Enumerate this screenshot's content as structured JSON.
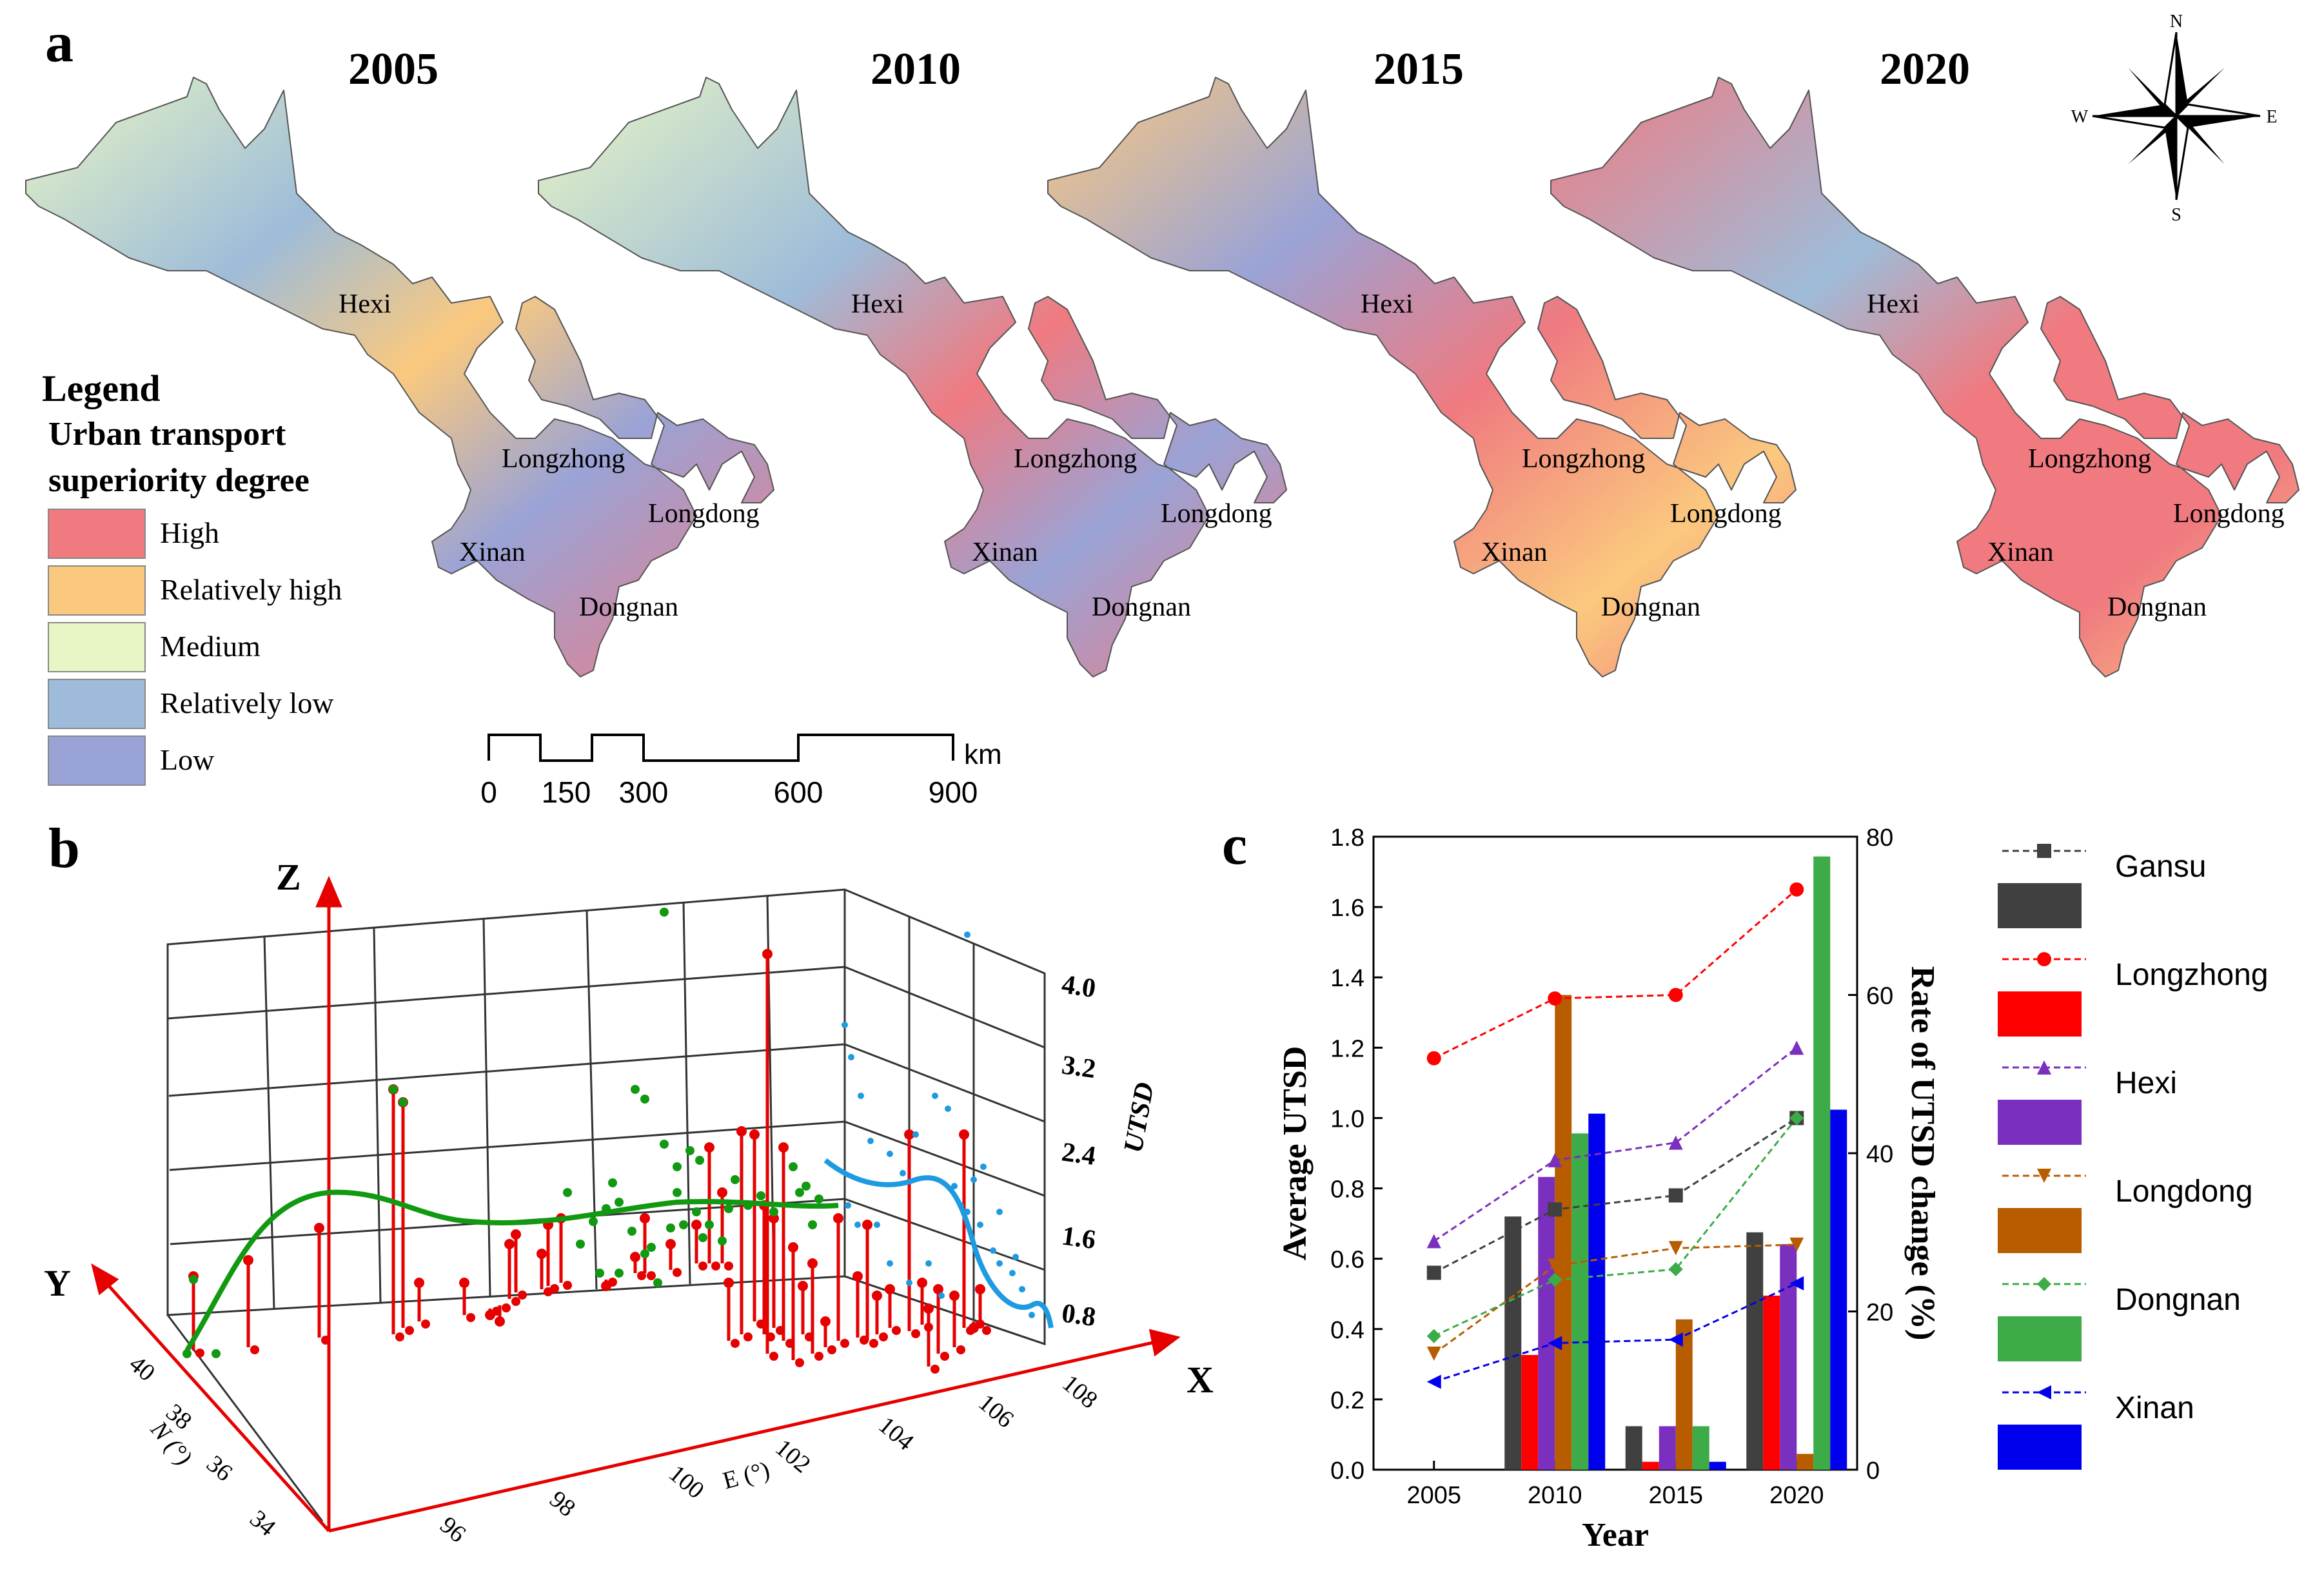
{
  "panel_a": {
    "label": "a",
    "years": [
      "2005",
      "2010",
      "2015",
      "2020"
    ],
    "regions": [
      "Hexi",
      "Longzhong",
      "Longdong",
      "Xinan",
      "Dongnan"
    ],
    "legend": {
      "title": "Legend",
      "subtitle_line1": "Urban transport",
      "subtitle_line2": "superiority degree",
      "classes": [
        {
          "label": "High",
          "color": "#f07a80"
        },
        {
          "label": "Relatively high",
          "color": "#fbc97e"
        },
        {
          "label": "Medium",
          "color": "#e8f5c4"
        },
        {
          "label": "Relatively low",
          "color": "#9ebcd9"
        },
        {
          "label": "Low",
          "color": "#9aa3d6"
        }
      ]
    },
    "scale": {
      "ticks": [
        "0",
        "150",
        "300",
        "600",
        "900"
      ],
      "unit": "km"
    },
    "compass": {
      "n": "N",
      "s": "S",
      "e": "E",
      "w": "W"
    }
  },
  "panel_b": {
    "label": "b",
    "axis_x": "X",
    "axis_y": "Y",
    "axis_z": "Z",
    "e_ticks": [
      "96",
      "98",
      "100",
      "102",
      "104",
      "106",
      "108"
    ],
    "e_label": "E (°)",
    "n_ticks": [
      "34",
      "36",
      "38",
      "40"
    ],
    "n_label": "N (°)",
    "z_ticks": [
      "0.8",
      "1.6",
      "2.4",
      "3.2",
      "4.0"
    ],
    "z_label": "UTSD"
  },
  "chart_data": [
    {
      "type": "bar",
      "panel": "c",
      "title": "",
      "categories": [
        "2005",
        "2010",
        "2015",
        "2020"
      ],
      "xlabel": "Year",
      "ylabel": "Average UTSD",
      "ylim": [
        0,
        1.8
      ],
      "y_ticks": [
        "0.0",
        "0.2",
        "0.4",
        "0.6",
        "0.8",
        "1.0",
        "1.2",
        "1.4",
        "1.6",
        "1.8"
      ],
      "y2label": "Rate of UTSD change (%)",
      "y2lim": [
        0,
        80
      ],
      "y2_ticks": [
        "0",
        "20",
        "40",
        "60",
        "80"
      ],
      "legend_position": "right",
      "bar_series_axis": "right",
      "line_series_axis": "left",
      "series": [
        {
          "name": "Gansu",
          "color": "#404040",
          "marker": "square",
          "line_values": [
            0.56,
            0.74,
            0.78,
            1.0
          ],
          "bar_values": [
            null,
            32,
            5.5,
            30
          ]
        },
        {
          "name": "Longzhong",
          "color": "#ff0000",
          "marker": "circle",
          "line_values": [
            1.17,
            1.34,
            1.35,
            1.65
          ],
          "bar_values": [
            null,
            14.5,
            1,
            22
          ]
        },
        {
          "name": "Hexi",
          "color": "#7b2fbe",
          "marker": "triangle-up",
          "line_values": [
            0.65,
            0.88,
            0.93,
            1.2
          ],
          "bar_values": [
            null,
            37,
            5.5,
            28.5
          ]
        },
        {
          "name": "Longdong",
          "color": "#b85c00",
          "marker": "triangle-down",
          "line_values": [
            0.33,
            0.58,
            0.63,
            0.64
          ],
          "bar_values": [
            null,
            60,
            19,
            2
          ]
        },
        {
          "name": "Dongnan",
          "color": "#3cab48",
          "marker": "diamond",
          "line_values": [
            0.38,
            0.54,
            0.57,
            1.0
          ],
          "bar_values": [
            null,
            42.5,
            5.5,
            77.5
          ]
        },
        {
          "name": "Xinan",
          "color": "#0000ee",
          "marker": "triangle-left",
          "line_values": [
            0.25,
            0.36,
            0.37,
            0.53
          ],
          "bar_values": [
            null,
            45,
            1,
            45.5
          ]
        }
      ]
    }
  ]
}
